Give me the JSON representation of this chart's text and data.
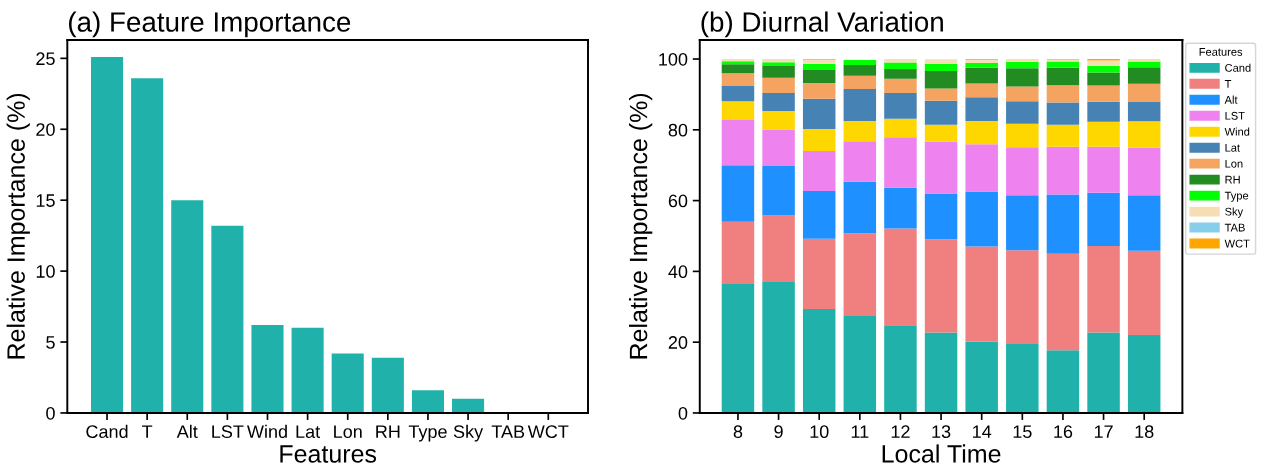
{
  "chart_data": [
    {
      "type": "bar",
      "title": "(a) Feature Importance",
      "xlabel": "Features",
      "ylabel": "Relative Importance (%)",
      "categories": [
        "Cand",
        "T",
        "Alt",
        "LST",
        "Wind",
        "Lat",
        "Lon",
        "RH",
        "Type",
        "Sky",
        "TAB",
        "WCT"
      ],
      "values": [
        25.1,
        23.6,
        15.0,
        13.2,
        6.2,
        6.0,
        4.2,
        3.9,
        1.6,
        1.0,
        0.05,
        0.02
      ],
      "color": "#20b2aa",
      "ylim": [
        0,
        26.3
      ],
      "yticks": [
        0,
        5,
        10,
        15,
        20,
        25
      ],
      "grid": false,
      "legend": false
    },
    {
      "type": "bar",
      "title": "(b) Diurnal Variation",
      "xlabel": "Local Time",
      "ylabel": "Relative Importance (%)",
      "legend_title": "Features",
      "categories": [
        "8",
        "9",
        "10",
        "11",
        "12",
        "13",
        "14",
        "15",
        "16",
        "17",
        "18"
      ],
      "stacked": true,
      "ylim": [
        0,
        105.4
      ],
      "yticks": [
        0,
        20,
        40,
        60,
        80,
        100
      ],
      "grid": false,
      "legend": "right",
      "series": [
        {
          "name": "Cand",
          "color": "#20b2aa",
          "values": [
            36.4,
            37.0,
            29.4,
            27.4,
            24.8,
            22.7,
            20.2,
            19.5,
            17.7,
            22.7,
            22.0
          ]
        },
        {
          "name": "T",
          "color": "#f08080",
          "values": [
            17.6,
            18.8,
            19.8,
            23.4,
            27.3,
            26.4,
            26.8,
            26.5,
            27.3,
            24.5,
            23.8
          ]
        },
        {
          "name": "Alt",
          "color": "#1e90ff",
          "values": [
            16.0,
            14.0,
            13.5,
            14.5,
            11.5,
            12.9,
            15.6,
            15.5,
            16.7,
            15.0,
            15.7
          ]
        },
        {
          "name": "LST",
          "color": "#ee82ee",
          "values": [
            12.8,
            10.3,
            11.3,
            11.5,
            14.3,
            14.6,
            13.3,
            13.6,
            13.5,
            13.0,
            13.4
          ]
        },
        {
          "name": "Wind",
          "color": "#ffd700",
          "values": [
            5.3,
            5.2,
            6.2,
            5.7,
            5.2,
            4.8,
            6.6,
            6.6,
            6.2,
            7.1,
            7.5
          ]
        },
        {
          "name": "Lat",
          "color": "#4682b4",
          "values": [
            4.3,
            5.1,
            8.6,
            9.0,
            7.3,
            6.8,
            6.7,
            6.4,
            6.3,
            5.6,
            5.6
          ]
        },
        {
          "name": "Lon",
          "color": "#f4a460",
          "values": [
            3.6,
            4.3,
            4.4,
            3.8,
            4.0,
            3.5,
            3.9,
            4.1,
            4.9,
            4.6,
            5.0
          ]
        },
        {
          "name": "RH",
          "color": "#228b22",
          "values": [
            2.5,
            3.3,
            3.7,
            3.0,
            2.8,
            4.9,
            4.4,
            5.2,
            4.9,
            3.7,
            4.7
          ]
        },
        {
          "name": "Type",
          "color": "#00ff00",
          "values": [
            0.9,
            1.1,
            1.7,
            1.4,
            1.8,
            2.0,
            1.4,
            1.8,
            1.8,
            1.8,
            1.6
          ]
        },
        {
          "name": "Sky",
          "color": "#f5deb3",
          "values": [
            0.6,
            0.9,
            1.1,
            null,
            1.0,
            1.3,
            0.9,
            0.8,
            0.5,
            1.6,
            0.7
          ]
        },
        {
          "name": "TAB",
          "color": "#87ceeb",
          "values": [
            0,
            0,
            0.2,
            0,
            0,
            null,
            0,
            0,
            0.2,
            0,
            0
          ]
        },
        {
          "name": "WCT",
          "color": "#ffa500",
          "values": [
            0,
            0,
            0.1,
            0,
            0,
            0,
            0.2,
            0,
            0,
            0.4,
            0
          ]
        }
      ]
    }
  ]
}
